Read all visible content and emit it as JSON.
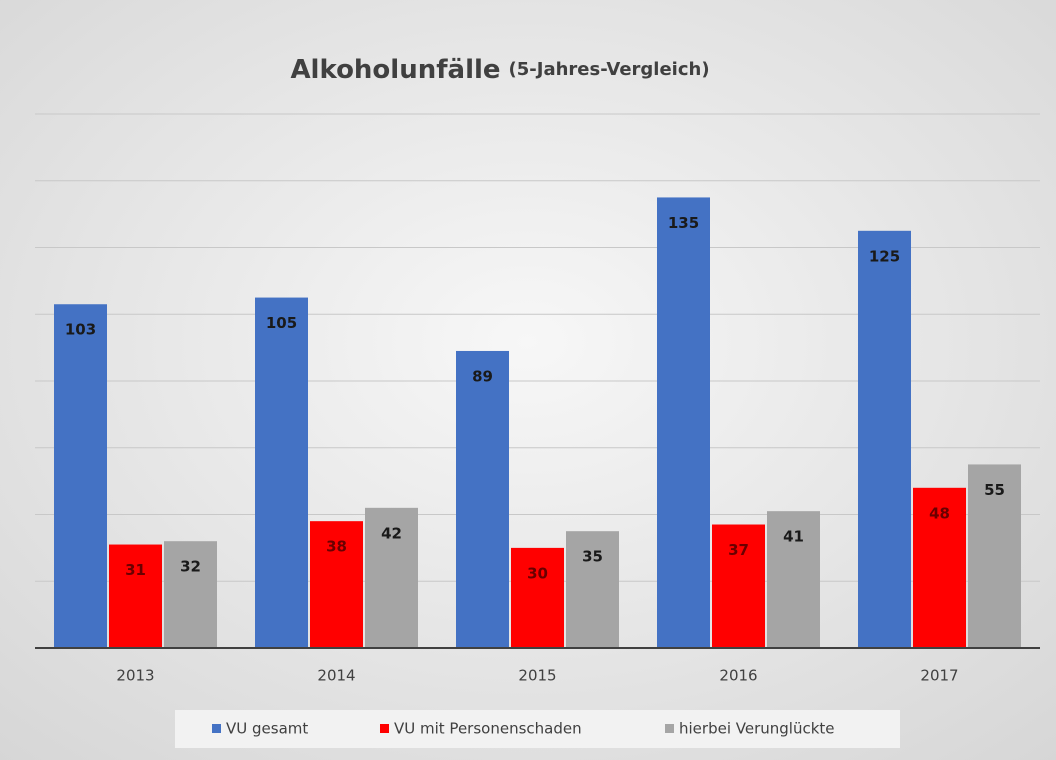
{
  "chart_data": {
    "type": "bar",
    "title": "Alkoholunfälle",
    "subtitle": "(5-Jahres-Vergleich)",
    "categories": [
      "2013",
      "2014",
      "2015",
      "2016",
      "2017"
    ],
    "series": [
      {
        "name": "VU gesamt",
        "color": "#4472c4",
        "values": [
          103,
          105,
          89,
          135,
          125
        ]
      },
      {
        "name": "VU mit Personenschaden",
        "color": "#ff0000",
        "values": [
          31,
          38,
          30,
          37,
          48
        ]
      },
      {
        "name": "hierbei Verunglückte",
        "color": "#a5a5a5",
        "values": [
          32,
          42,
          35,
          41,
          55
        ]
      }
    ],
    "ylim": [
      0,
      160
    ],
    "yticks": [
      0,
      20,
      40,
      60,
      80,
      100,
      120,
      140,
      160
    ],
    "grid": true,
    "legend": "bottom"
  }
}
